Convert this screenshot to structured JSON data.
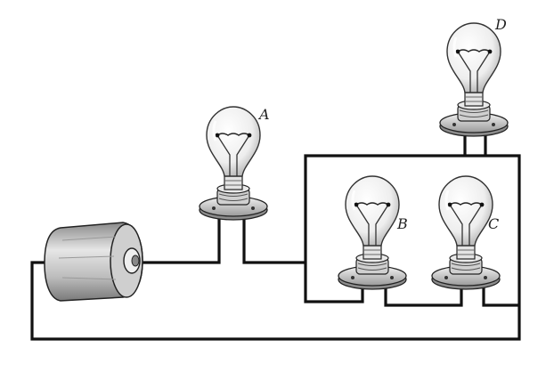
{
  "diagram": {
    "bulbs": [
      {
        "id": "bulb-a",
        "label": "A"
      },
      {
        "id": "bulb-b",
        "label": "B"
      },
      {
        "id": "bulb-c",
        "label": "C"
      },
      {
        "id": "bulb-d",
        "label": "D"
      }
    ],
    "colors": {
      "wire": "#111111",
      "glass": "#f4f4f4",
      "base": "#d8d8d8",
      "battery": "#cfcfcf"
    }
  }
}
